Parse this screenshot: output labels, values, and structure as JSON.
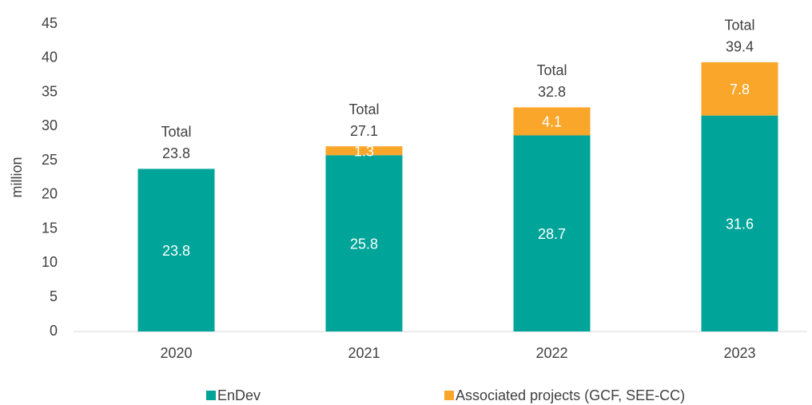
{
  "chart_data": {
    "type": "stacked_bar",
    "y_label": "million",
    "categories": [
      "2020",
      "2021",
      "2022",
      "2023"
    ],
    "series": [
      {
        "name": "EnDev",
        "color": "#00a499",
        "values": [
          23.8,
          25.8,
          28.7,
          31.6
        ]
      },
      {
        "name": "Associated projects (GCF, SEE-CC)",
        "color": "#f9a62b",
        "values": [
          null,
          1.3,
          4.1,
          7.8
        ]
      }
    ],
    "total_label": "Total",
    "totals": [
      23.8,
      27.1,
      32.8,
      39.4
    ],
    "ylim": [
      0,
      45
    ],
    "yticks": [
      0,
      5,
      10,
      15,
      20,
      25,
      30,
      35,
      40,
      45
    ],
    "grid": false,
    "legend": "bottom"
  }
}
